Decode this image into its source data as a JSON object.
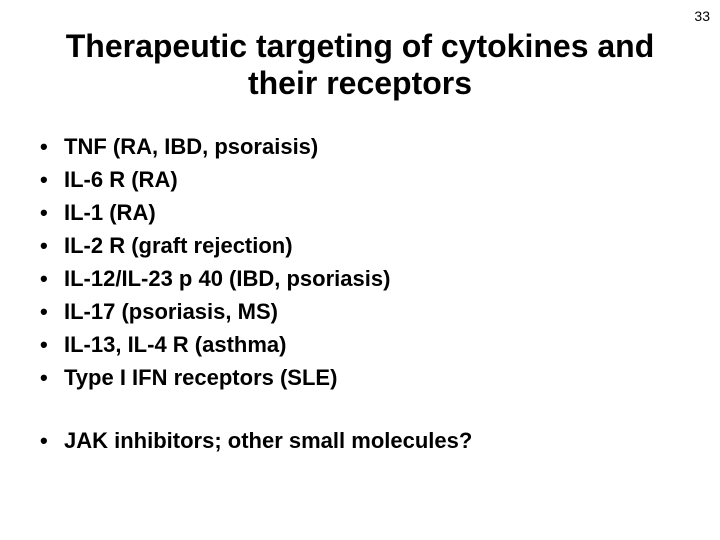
{
  "pageNumber": "33",
  "title": "Therapeutic targeting of cytokines and their receptors",
  "bullets": {
    "item0": "TNF (RA, IBD, psoraisis)",
    "item1": "IL-6 R (RA)",
    "item2": "IL-1 (RA)",
    "item3": "IL-2 R (graft rejection)",
    "item4": "IL-12/IL-23 p 40 (IBD, psoriasis)",
    "item5": "IL-17 (psoriasis, MS)",
    "item6": "IL-13, IL-4 R (asthma)",
    "item7": "Type I IFN receptors (SLE)",
    "item8": "JAK inhibitors; other small molecules?"
  },
  "styling": {
    "backgroundColor": "#ffffff",
    "textColor": "#000000",
    "titleFontSize": 32,
    "bodyFontSize": 22,
    "titleFontFamily": "Comic Sans MS",
    "bodyFontFamily": "Verdana"
  }
}
